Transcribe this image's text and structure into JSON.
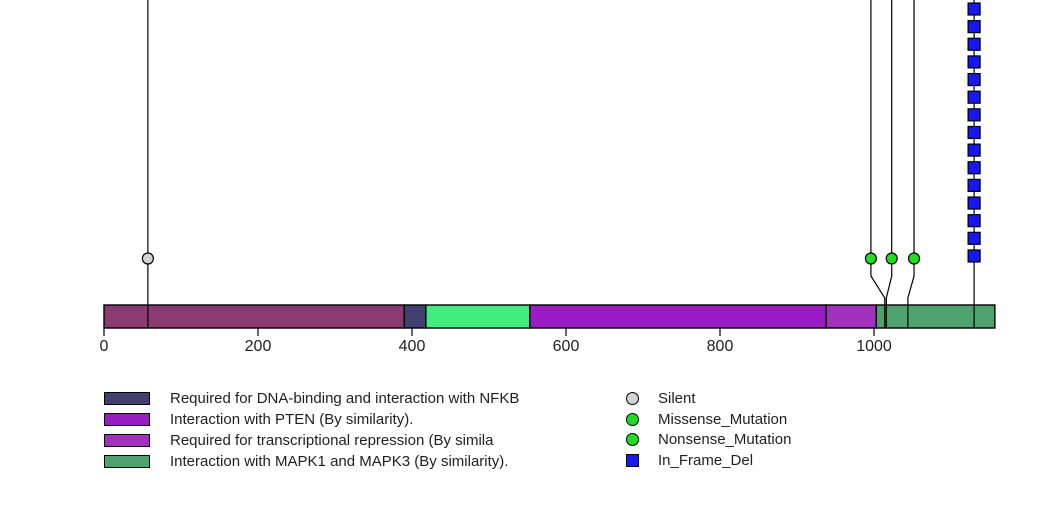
{
  "chart_data": {
    "type": "lollipop",
    "title": "",
    "xlabel": "",
    "ylabel": "",
    "description": "Protein mutation lollipop plot: colored domain bar with amino-acid axis, mutation sticks topped by circle/square glyphs, and a two-column legend",
    "x_axis_ticks": [
      0,
      200,
      400,
      600,
      800,
      1000
    ],
    "x_range": [
      0,
      1157
    ],
    "protein_length": 1157,
    "grid": false,
    "domains": [
      {
        "label": "",
        "start": 0,
        "end": 390,
        "color": "#8C3B72"
      },
      {
        "label": "Required for DNA-binding and interaction with NFKB",
        "start": 390,
        "end": 418,
        "color": "#414070"
      },
      {
        "label": "",
        "start": 418,
        "end": 553,
        "color": "#42ED80"
      },
      {
        "label": "Interaction with PTEN (By similarity).",
        "start": 553,
        "end": 938,
        "color": "#991CC4"
      },
      {
        "label": "Required for transcriptional repression (By simila",
        "start": 938,
        "end": 1003,
        "color": "#A232BE"
      },
      {
        "label": "Interaction with MAPK1 and MAPK3 (By similarity).",
        "start": 1003,
        "end": 1157,
        "color": "#4EA26E"
      }
    ],
    "mutations": [
      {
        "label": "Silent",
        "marker": "circle",
        "color": "#D3D3D3",
        "x": 57,
        "attach": 57,
        "count": 1
      },
      {
        "label": "Missense/Nonsense_Mutation",
        "marker": "circle",
        "color": "#1FDD1F",
        "x": 996,
        "attach": 1014,
        "count": 1
      },
      {
        "label": "Missense/Nonsense_Mutation",
        "marker": "circle",
        "color": "#1FDD1F",
        "x": 1023,
        "attach": 1016,
        "count": 1
      },
      {
        "label": "Missense/Nonsense_Mutation",
        "marker": "circle",
        "color": "#1FDD1F",
        "x": 1052,
        "attach": 1044,
        "count": 1
      },
      {
        "label": "In_Frame_Del",
        "marker": "square",
        "color": "#1717EF",
        "x": 1130,
        "attach": 1130,
        "count": 15
      }
    ],
    "legend_position": "bottom"
  },
  "legend_left": {
    "items": [
      {
        "label": "Required for DNA-binding and interaction with NFKB",
        "color": "#414070"
      },
      {
        "label": "Interaction with PTEN (By similarity).",
        "color": "#991CC4"
      },
      {
        "label": "Required for transcriptional repression (By simila",
        "color": "#A232BE"
      },
      {
        "label": "Interaction with MAPK1 and MAPK3 (By similarity).",
        "color": "#4EA26E"
      }
    ]
  },
  "legend_right": {
    "items": [
      {
        "label": "Silent",
        "shape": "circle",
        "color": "#D3D3D3"
      },
      {
        "label": "Missense_Mutation",
        "shape": "circle",
        "color": "#1FDD1F"
      },
      {
        "label": "Nonsense_Mutation",
        "shape": "circle",
        "color": "#1FDD1F"
      },
      {
        "label": "In_Frame_Del",
        "shape": "square",
        "color": "#1717EF"
      }
    ]
  },
  "colors": {
    "stick": "#000000",
    "bar_border": "#000000",
    "tick_label": "#1f1f1f",
    "background": "#ffffff"
  }
}
